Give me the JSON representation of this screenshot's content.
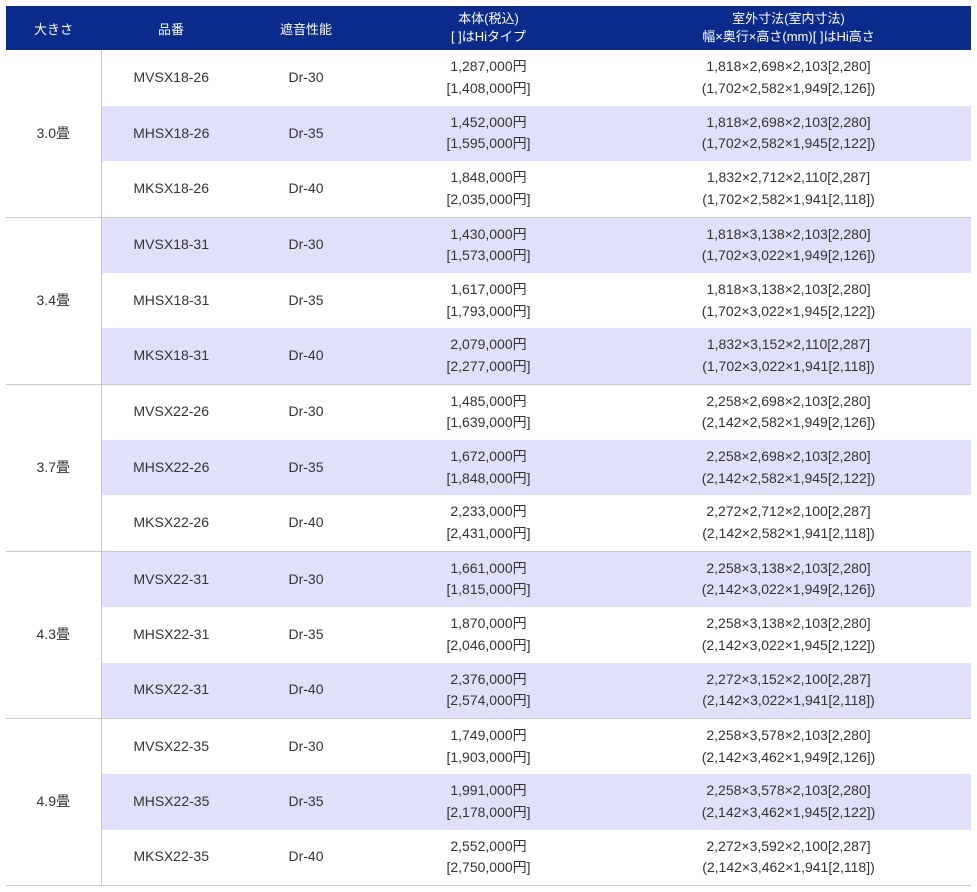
{
  "colors": {
    "header_bg": "#0b2b8c",
    "header_fg": "#ffffff",
    "row_white": "#ffffff",
    "row_lilac": "#e0e0fa",
    "border": "#c9c9c9",
    "text": "#333333"
  },
  "headers": {
    "size": "大きさ",
    "model": "品番",
    "perf": "遮音性能",
    "price_l1": "本体(税込)",
    "price_l2": "[ ]はHiタイプ",
    "dim_l1": "室外寸法(室内寸法)",
    "dim_l2": "幅×奥行×高さ(mm)[ ]はHi高さ"
  },
  "groups": [
    {
      "size": "3.0畳",
      "rows": [
        {
          "model": "MVSX18-26",
          "perf": "Dr-30",
          "price_l1": "1,287,000円",
          "price_l2": "[1,408,000円]",
          "dim_l1": "1,818×2,698×2,103[2,280]",
          "dim_l2": "(1,702×2,582×1,949[2,126])"
        },
        {
          "model": "MHSX18-26",
          "perf": "Dr-35",
          "price_l1": "1,452,000円",
          "price_l2": "[1,595,000円]",
          "dim_l1": "1,818×2,698×2,103[2,280]",
          "dim_l2": "(1,702×2,582×1,945[2,122])"
        },
        {
          "model": "MKSX18-26",
          "perf": "Dr-40",
          "price_l1": "1,848,000円",
          "price_l2": "[2,035,000円]",
          "dim_l1": "1,832×2,712×2,110[2,287]",
          "dim_l2": "(1,702×2,582×1,941[2,118])"
        }
      ]
    },
    {
      "size": "3.4畳",
      "rows": [
        {
          "model": "MVSX18-31",
          "perf": "Dr-30",
          "price_l1": "1,430,000円",
          "price_l2": "[1,573,000円]",
          "dim_l1": "1,818×3,138×2,103[2,280]",
          "dim_l2": "(1,702×3,022×1,949[2,126])"
        },
        {
          "model": "MHSX18-31",
          "perf": "Dr-35",
          "price_l1": "1,617,000円",
          "price_l2": "[1,793,000円]",
          "dim_l1": "1,818×3,138×2,103[2,280]",
          "dim_l2": "(1,702×3,022×1,945[2,122])"
        },
        {
          "model": "MKSX18-31",
          "perf": "Dr-40",
          "price_l1": "2,079,000円",
          "price_l2": "[2,277,000円]",
          "dim_l1": "1,832×3,152×2,110[2,287]",
          "dim_l2": "(1,702×3,022×1,941[2,118])"
        }
      ]
    },
    {
      "size": "3.7畳",
      "rows": [
        {
          "model": "MVSX22-26",
          "perf": "Dr-30",
          "price_l1": "1,485,000円",
          "price_l2": "[1,639,000円]",
          "dim_l1": "2,258×2,698×2,103[2,280]",
          "dim_l2": "(2,142×2,582×1,949[2,126])"
        },
        {
          "model": "MHSX22-26",
          "perf": "Dr-35",
          "price_l1": "1,672,000円",
          "price_l2": "[1,848,000円]",
          "dim_l1": "2,258×2,698×2,103[2,280]",
          "dim_l2": "(2,142×2,582×1,945[2,122])"
        },
        {
          "model": "MKSX22-26",
          "perf": "Dr-40",
          "price_l1": "2,233,000円",
          "price_l2": "[2,431,000円]",
          "dim_l1": "2,272×2,712×2,100[2,287]",
          "dim_l2": "(2,142×2,582×1,941[2,118])"
        }
      ]
    },
    {
      "size": "4.3畳",
      "rows": [
        {
          "model": "MVSX22-31",
          "perf": "Dr-30",
          "price_l1": "1,661,000円",
          "price_l2": "[1,815,000円]",
          "dim_l1": "2,258×3,138×2,103[2,280]",
          "dim_l2": "(2,142×3,022×1,949[2,126])"
        },
        {
          "model": "MHSX22-31",
          "perf": "Dr-35",
          "price_l1": "1,870,000円",
          "price_l2": "[2,046,000円]",
          "dim_l1": "2,258×3,138×2,103[2,280]",
          "dim_l2": "(2,142×3,022×1,945[2,122])"
        },
        {
          "model": "MKSX22-31",
          "perf": "Dr-40",
          "price_l1": "2,376,000円",
          "price_l2": "[2,574,000円]",
          "dim_l1": "2,272×3,152×2,100[2,287]",
          "dim_l2": "(2,142×3,022×1,941[2,118])"
        }
      ]
    },
    {
      "size": "4.9畳",
      "rows": [
        {
          "model": "MVSX22-35",
          "perf": "Dr-30",
          "price_l1": "1,749,000円",
          "price_l2": "[1,903,000円]",
          "dim_l1": "2,258×3,578×2,103[2,280]",
          "dim_l2": "(2,142×3,462×1,949[2,126])"
        },
        {
          "model": "MHSX22-35",
          "perf": "Dr-35",
          "price_l1": "1,991,000円",
          "price_l2": "[2,178,000円]",
          "dim_l1": "2,258×3,578×2,103[2,280]",
          "dim_l2": "(2,142×3,462×1,945[2,122])"
        },
        {
          "model": "MKSX22-35",
          "perf": "Dr-40",
          "price_l1": "2,552,000円",
          "price_l2": "[2,750,000円]",
          "dim_l1": "2,272×3,592×2,100[2,287]",
          "dim_l2": "(2,142×3,462×1,941[2,118])"
        }
      ]
    }
  ]
}
